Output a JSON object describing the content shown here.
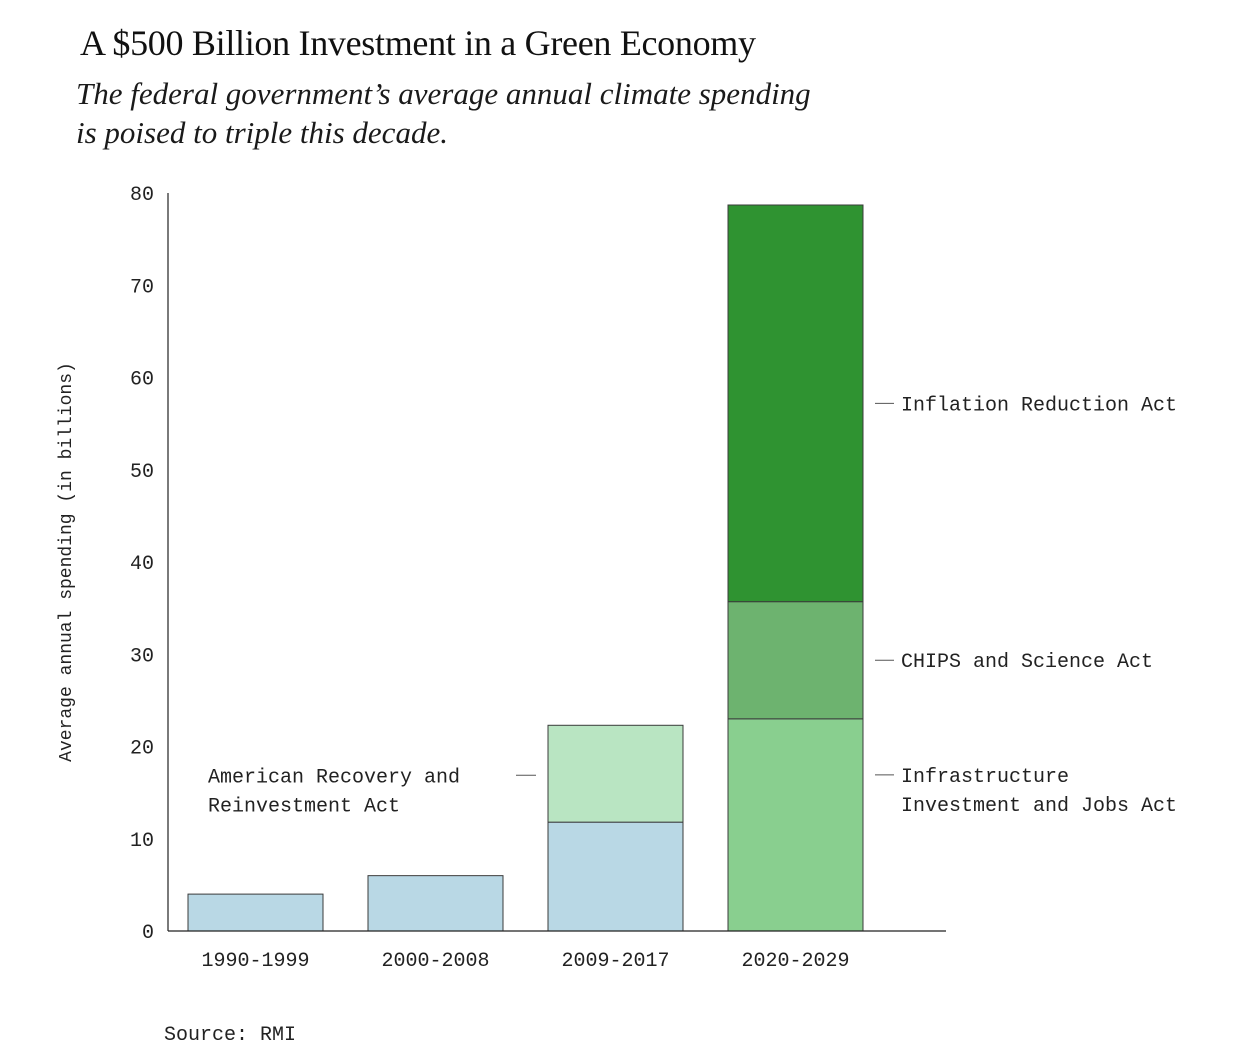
{
  "title": "A $500 Billion Investment in a Green Economy",
  "subtitle": "The federal government’s average annual climate spending is poised to triple this decade.",
  "source": "Source: RMI",
  "chart_data": {
    "type": "bar",
    "stacked": true,
    "categories": [
      "1990-1999",
      "2000-2008",
      "2009-2017",
      "2020-2029"
    ],
    "ylabel": "Average annual spending (in billions)",
    "xlabel": "",
    "ylim": [
      0,
      80
    ],
    "yticks": [
      0,
      10,
      20,
      30,
      40,
      50,
      60,
      70,
      80
    ],
    "grid": false,
    "legend": "none",
    "series": [
      {
        "key": "base",
        "values": [
          4,
          6,
          11.8,
          0
        ],
        "color": "#b9d8e5"
      },
      {
        "key": "arra",
        "values": [
          0,
          0,
          10.5,
          0
        ],
        "color": "#b9e5c2"
      },
      {
        "key": "iija",
        "values": [
          0,
          0,
          0,
          23
        ],
        "color": "#89cf8f"
      },
      {
        "key": "chips",
        "values": [
          0,
          0,
          0,
          12.7
        ],
        "color": "#6db36f"
      },
      {
        "key": "ira",
        "values": [
          0,
          0,
          0,
          43
        ],
        "color": "#2f9331"
      }
    ],
    "annotations": [
      {
        "series": "arra",
        "category": "2009-2017",
        "side": "left",
        "lines": [
          "American Recovery and",
          "Reinvestment Act"
        ]
      },
      {
        "series": "iija",
        "category": "2020-2029",
        "side": "right",
        "lines": [
          "Infrastructure",
          "Investment and Jobs Act"
        ]
      },
      {
        "series": "chips",
        "category": "2020-2029",
        "side": "right",
        "lines": [
          "CHIPS and Science Act"
        ]
      },
      {
        "series": "ira",
        "category": "2020-2029",
        "side": "right",
        "lines": [
          "Inflation Reduction Act"
        ]
      }
    ]
  }
}
